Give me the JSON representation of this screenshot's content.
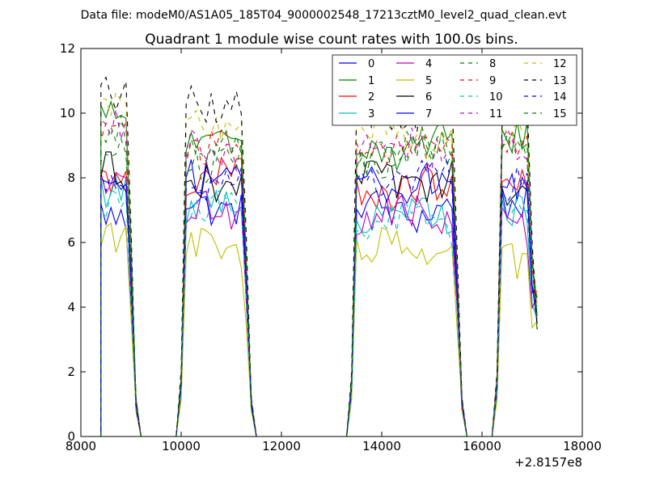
{
  "figure": {
    "suptitle": "Data file: modeM0/AS1A05_185T04_9000002548_17213cztM0_level2_quad_clean.evt"
  },
  "chart_data": {
    "type": "line",
    "title": "Quadrant 1 module wise count rates with 100.0s bins.",
    "xlabel": "",
    "ylabel": "",
    "xlim": [
      8000,
      18000
    ],
    "ylim": [
      0,
      12
    ],
    "x_offset_label": "+2.8157e8",
    "xticks": [
      8000,
      10000,
      12000,
      14000,
      16000,
      18000
    ],
    "yticks": [
      0,
      2,
      4,
      6,
      8,
      10,
      12
    ],
    "xtick_labels": [
      "8000",
      "10000",
      "12000",
      "14000",
      "16000",
      "18000"
    ],
    "ytick_labels": [
      "0",
      "2",
      "4",
      "6",
      "8",
      "10",
      "12"
    ],
    "grid": false,
    "legend_position": "top-right",
    "legend_columns": 4,
    "segments": [
      {
        "xs": 8400,
        "xe": 9100
      },
      {
        "xs": 10000,
        "xe": 11400
      },
      {
        "xs": 13400,
        "xe": 15600
      },
      {
        "xs": 16300,
        "xe": 17100
      }
    ],
    "series": [
      {
        "name": "0",
        "color": "#0000ff",
        "dash": "solid",
        "levels": [
          6.9,
          7.2,
          7.0,
          7.4
        ]
      },
      {
        "name": "1",
        "color": "#008000",
        "dash": "solid",
        "levels": [
          10.1,
          9.2,
          9.0,
          9.3
        ]
      },
      {
        "name": "2",
        "color": "#ff0000",
        "dash": "solid",
        "levels": [
          8.1,
          8.0,
          7.6,
          7.5
        ]
      },
      {
        "name": "3",
        "color": "#00bfbf",
        "dash": "solid",
        "levels": [
          7.6,
          7.1,
          6.9,
          6.8
        ]
      },
      {
        "name": "4",
        "color": "#bf00bf",
        "dash": "solid",
        "levels": [
          7.5,
          6.9,
          6.8,
          6.6
        ]
      },
      {
        "name": "5",
        "color": "#bfbf00",
        "dash": "solid",
        "levels": [
          6.1,
          5.7,
          5.7,
          5.6
        ]
      },
      {
        "name": "6",
        "color": "#000000",
        "dash": "solid",
        "levels": [
          8.3,
          7.9,
          7.8,
          7.7
        ]
      },
      {
        "name": "7",
        "color": "#0000ff",
        "dash": "solid",
        "levels": [
          8.4,
          8.2,
          7.9,
          7.8
        ]
      },
      {
        "name": "8",
        "color": "#008000",
        "dash": "dashed",
        "levels": [
          9.0,
          8.6,
          8.7,
          8.8
        ]
      },
      {
        "name": "9",
        "color": "#ff0000",
        "dash": "dashed",
        "levels": [
          9.5,
          8.9,
          8.9,
          8.8
        ]
      },
      {
        "name": "10",
        "color": "#00bfbf",
        "dash": "dashed",
        "levels": [
          7.1,
          6.9,
          6.6,
          7.0
        ]
      },
      {
        "name": "11",
        "color": "#bf00bf",
        "dash": "dashed",
        "levels": [
          9.6,
          8.8,
          9.0,
          9.0
        ]
      },
      {
        "name": "12",
        "color": "#bfbf00",
        "dash": "dashed",
        "levels": [
          10.2,
          9.7,
          9.3,
          9.8
        ]
      },
      {
        "name": "13",
        "color": "#000000",
        "dash": "dashed",
        "levels": [
          10.8,
          10.3,
          9.9,
          10.0
        ]
      },
      {
        "name": "14",
        "color": "#0000ff",
        "dash": "dashed",
        "levels": [
          8.2,
          7.9,
          7.9,
          7.8
        ]
      },
      {
        "name": "15",
        "color": "#008000",
        "dash": "dashed",
        "levels": [
          9.3,
          8.9,
          8.8,
          9.0
        ]
      }
    ]
  }
}
